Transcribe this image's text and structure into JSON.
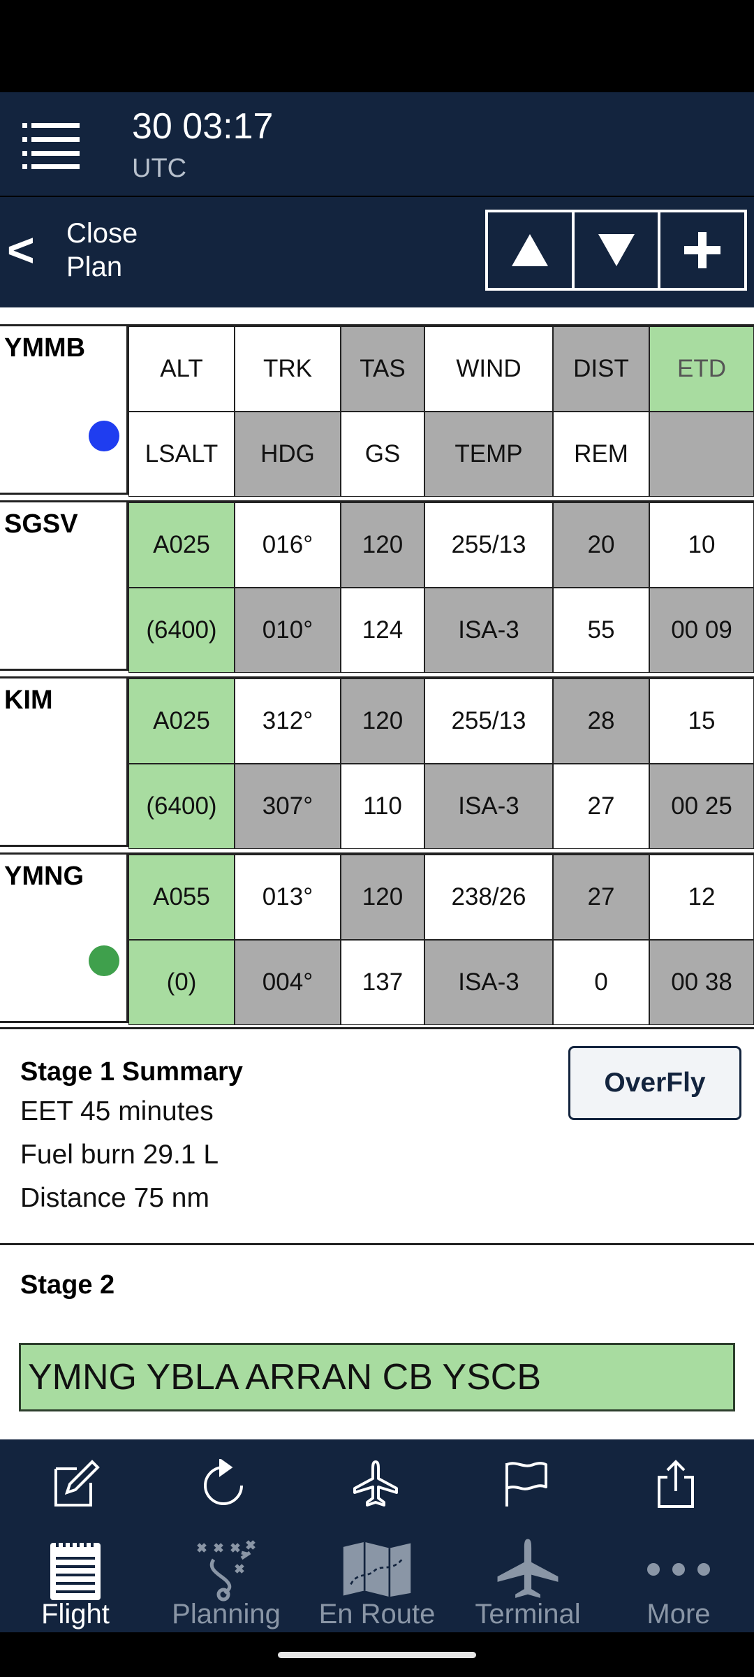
{
  "header": {
    "time": "30 03:17",
    "zone": "UTC"
  },
  "plan_bar": {
    "back_symbol": "<",
    "close_label_1": "Close",
    "close_label_2": "Plan"
  },
  "origin": {
    "name": "YMMB",
    "dot_color": "#1f3df0",
    "headers_top": [
      "ALT",
      "TRK",
      "TAS",
      "WIND",
      "DIST",
      "ETD"
    ],
    "headers_bottom": [
      "LSALT",
      "HDG",
      "GS",
      "TEMP",
      "REM",
      ""
    ]
  },
  "waypoints": [
    {
      "name": "SGSV",
      "top": [
        "A025",
        "016°",
        "120",
        "255/13",
        "20",
        "10"
      ],
      "bottom": [
        "(6400)",
        "010°",
        "124",
        "ISA-3",
        "55",
        "00 09"
      ]
    },
    {
      "name": "KIM",
      "top": [
        "A025",
        "312°",
        "120",
        "255/13",
        "28",
        "15"
      ],
      "bottom": [
        "(6400)",
        "307°",
        "110",
        "ISA-3",
        "27",
        "00 25"
      ]
    },
    {
      "name": "YMNG",
      "dot_color": "#3fa04c",
      "top": [
        "A055",
        "013°",
        "120",
        "238/26",
        "27",
        "12"
      ],
      "bottom": [
        "(0)",
        "004°",
        "137",
        "ISA-3",
        "0",
        "00 38"
      ]
    }
  ],
  "summary": {
    "title": "Stage 1 Summary",
    "eet": "EET 45 minutes",
    "fuel": "Fuel burn 29.1 L",
    "distance": "Distance 75 nm",
    "overfly_label": "OverFly"
  },
  "stage2": {
    "title": "Stage 2",
    "route": "YMNG YBLA ARRAN CB YSCB"
  },
  "toolbar": {
    "icons": [
      "edit-icon",
      "refresh-icon",
      "airplane-icon",
      "flag-icon",
      "share-icon"
    ]
  },
  "tabs": [
    {
      "label": "Flight",
      "icon": "notepad-icon",
      "active": true
    },
    {
      "label": "Planning",
      "icon": "playbook-icon",
      "active": false
    },
    {
      "label": "En Route",
      "icon": "map-icon",
      "active": false
    },
    {
      "label": "Terminal",
      "icon": "airplane-icon",
      "active": false
    },
    {
      "label": "More",
      "icon": "more-dots-icon",
      "active": false
    }
  ],
  "colors": {
    "nav_bg": "#13243e",
    "green": "#a8dca0",
    "gray": "#ababab",
    "tab_inactive": "#8a96a6"
  }
}
